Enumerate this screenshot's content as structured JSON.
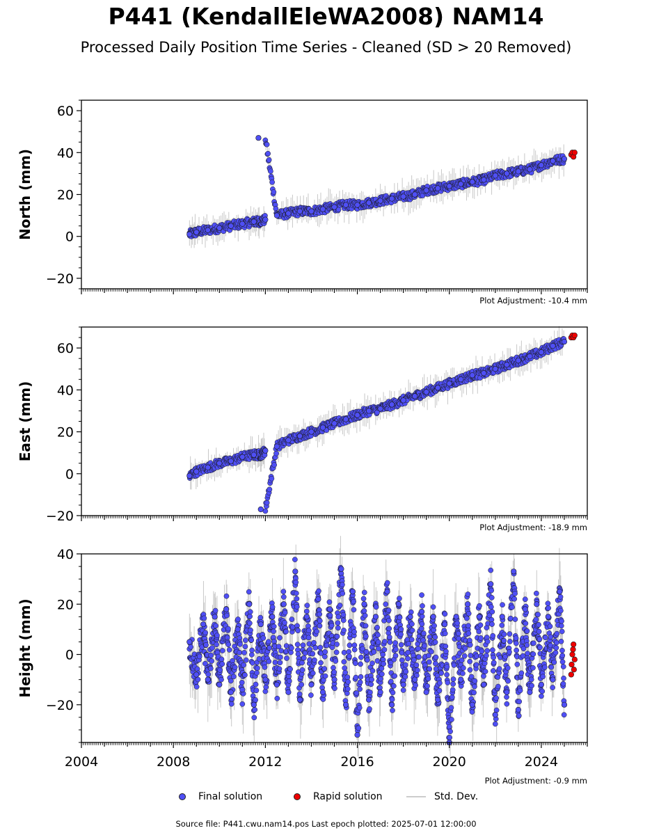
{
  "title": "P441 (KendallEleWA2008) NAM14",
  "subtitle": "Processed Daily Position Time Series - Cleaned (SD > 20 Removed)",
  "source_text": "Source file: P441.cwu.nam14.pos  Last epoch plotted: 2025-07-01 12:00:00",
  "legend": {
    "final": "Final solution",
    "rapid": "Rapid solution",
    "std": "Std. Dev."
  },
  "colors": {
    "final": "#4f4ff5",
    "rapid": "#ee0000",
    "std": "#c8c8c8",
    "edge": "#1a1a1a"
  },
  "chart_data": [
    {
      "type": "scatter",
      "ylabel": "North (mm)",
      "xlim": [
        2004,
        2026
      ],
      "ylim": [
        -25,
        65
      ],
      "yticks": [
        -20,
        0,
        20,
        40,
        60
      ],
      "xtick_labels": [],
      "adjustment_label": "Plot Adjustment: -10.4 mm",
      "series": [
        {
          "name": "Final solution",
          "x": [
            2008.7,
            2009.0,
            2009.5,
            2010.0,
            2010.5,
            2011.0,
            2011.5,
            2011.7,
            2012.0,
            2012.5,
            2013.0,
            2013.5,
            2014.0,
            2014.5,
            2015.0,
            2015.5,
            2016.0,
            2016.5,
            2017.0,
            2017.5,
            2018.0,
            2018.5,
            2019.0,
            2019.5,
            2020.0,
            2020.5,
            2021.0,
            2021.5,
            2022.0,
            2022.5,
            2023.0,
            2023.5,
            2024.0,
            2024.5,
            2025.0
          ],
          "y": [
            1,
            2,
            3,
            4,
            5,
            6,
            7,
            47,
            8,
            10,
            11,
            12,
            12,
            13,
            14,
            15,
            15,
            16,
            17,
            18,
            19,
            20,
            22,
            23,
            24,
            25,
            26,
            27,
            29,
            30,
            31,
            32,
            34,
            36,
            37
          ]
        },
        {
          "name": "Rapid solution",
          "x": [
            2025.3,
            2025.35,
            2025.4,
            2025.45
          ],
          "y": [
            39,
            40,
            38,
            40
          ]
        }
      ]
    },
    {
      "type": "scatter",
      "ylabel": "East (mm)",
      "xlim": [
        2004,
        2026
      ],
      "ylim": [
        -20,
        70
      ],
      "yticks": [
        -20,
        0,
        20,
        40,
        60
      ],
      "xtick_labels": [],
      "adjustment_label": "Plot Adjustment: -18.9 mm",
      "series": [
        {
          "name": "Final solution",
          "x": [
            2008.7,
            2009.0,
            2009.5,
            2010.0,
            2010.5,
            2011.0,
            2011.5,
            2011.8,
            2012.0,
            2012.5,
            2013.0,
            2013.5,
            2014.0,
            2014.5,
            2015.0,
            2015.5,
            2016.0,
            2016.5,
            2017.0,
            2017.5,
            2018.0,
            2018.5,
            2019.0,
            2019.5,
            2020.0,
            2020.5,
            2021.0,
            2021.5,
            2022.0,
            2022.5,
            2023.0,
            2023.5,
            2024.0,
            2024.5,
            2025.0
          ],
          "y": [
            -1,
            1,
            3,
            5,
            6,
            8,
            9,
            -17,
            11,
            13,
            16,
            18,
            20,
            22,
            24,
            26,
            28,
            30,
            31,
            33,
            35,
            37,
            39,
            41,
            43,
            45,
            47,
            48,
            50,
            52,
            54,
            56,
            58,
            61,
            63
          ]
        },
        {
          "name": "Rapid solution",
          "x": [
            2025.3,
            2025.35,
            2025.4,
            2025.45
          ],
          "y": [
            65,
            66,
            65,
            66
          ]
        }
      ]
    },
    {
      "type": "scatter",
      "ylabel": "Height (mm)",
      "xlim": [
        2004,
        2026
      ],
      "ylim": [
        -35,
        40
      ],
      "yticks": [
        -20,
        0,
        20,
        40
      ],
      "xtick_labels": [
        "2004",
        "2008",
        "2012",
        "2016",
        "2020",
        "2024"
      ],
      "adjustment_label": "Plot Adjustment: -0.9 mm",
      "series": [
        {
          "name": "Final solution",
          "x": [
            2008.7,
            2009.0,
            2009.3,
            2009.5,
            2009.8,
            2010.0,
            2010.3,
            2010.5,
            2010.8,
            2011.0,
            2011.3,
            2011.5,
            2011.8,
            2012.0,
            2012.3,
            2012.5,
            2012.8,
            2013.0,
            2013.3,
            2013.5,
            2013.8,
            2014.0,
            2014.3,
            2014.5,
            2014.8,
            2015.0,
            2015.3,
            2015.5,
            2015.8,
            2016.0,
            2016.3,
            2016.5,
            2016.8,
            2017.0,
            2017.3,
            2017.5,
            2017.8,
            2018.0,
            2018.3,
            2018.5,
            2018.8,
            2019.0,
            2019.3,
            2019.5,
            2019.8,
            2020.0,
            2020.3,
            2020.5,
            2020.8,
            2021.0,
            2021.3,
            2021.5,
            2021.8,
            2022.0,
            2022.3,
            2022.5,
            2022.8,
            2023.0,
            2023.3,
            2023.5,
            2023.8,
            2024.0,
            2024.3,
            2024.5,
            2024.8,
            2025.0
          ],
          "y": [
            5,
            -8,
            12,
            -10,
            15,
            -12,
            18,
            -15,
            10,
            -14,
            20,
            -20,
            12,
            -10,
            15,
            -12,
            20,
            -15,
            33,
            -18,
            15,
            -12,
            22,
            -15,
            18,
            -10,
            34,
            -20,
            25,
            -32,
            20,
            -18,
            15,
            -15,
            25,
            -20,
            20,
            -12,
            15,
            -10,
            17,
            -15,
            15,
            -18,
            12,
            -35,
            15,
            -10,
            20,
            -20,
            15,
            -12,
            28,
            -24,
            15,
            -15,
            33,
            -22,
            18,
            -15,
            20,
            -12,
            15,
            -10,
            25,
            -20
          ]
        },
        {
          "name": "Rapid solution",
          "x": [
            2025.3,
            2025.32,
            2025.35,
            2025.38,
            2025.4,
            2025.42,
            2025.45
          ],
          "y": [
            -8,
            -4,
            0,
            2,
            4,
            -6,
            -2
          ]
        }
      ]
    }
  ]
}
